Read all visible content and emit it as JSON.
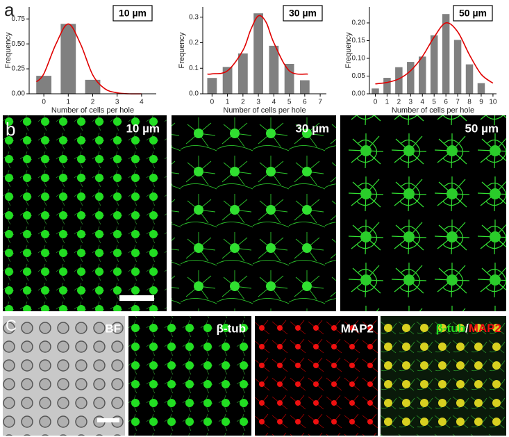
{
  "chart_data": [
    {
      "type": "bar",
      "annotation": "10 µm",
      "x_label": "Number of cells per hole",
      "y_label": "Frequency",
      "color": "#808080",
      "categories": [
        0,
        1,
        2
      ],
      "values": [
        0.18,
        0.7,
        0.14
      ],
      "xlim": [
        -0.6,
        4.6
      ],
      "xticks": [
        0,
        1,
        2,
        3,
        4
      ],
      "ylim": [
        0,
        0.87
      ],
      "yticks": [
        {
          "value": 0,
          "label": "0.00"
        },
        0.25,
        {
          "value": 0.5,
          "label": "0.50"
        },
        0.75
      ],
      "fit": {
        "color": "#e00000",
        "x": [
          -0.3,
          0,
          0.5,
          1,
          1.5,
          2,
          2.5,
          3,
          3.5,
          4
        ],
        "values": [
          0.12,
          0.2,
          0.5,
          0.7,
          0.5,
          0.19,
          0.05,
          0.01,
          0,
          0
        ]
      }
    },
    {
      "type": "bar",
      "annotation": "30 µm",
      "x_label": "Number of cells per hole",
      "y_label": "Frequency",
      "color": "#808080",
      "categories": [
        0,
        1,
        2,
        3,
        4,
        5,
        6
      ],
      "values": [
        0.062,
        0.105,
        0.158,
        0.315,
        0.188,
        0.117,
        0.053
      ],
      "xlim": [
        -0.6,
        7.4
      ],
      "xticks": [
        0,
        1,
        2,
        3,
        4,
        5,
        6,
        7
      ],
      "ylim": [
        0,
        0.34
      ],
      "yticks": [
        {
          "value": 0,
          "label": "0.0"
        },
        0.1,
        0.2,
        0.3
      ],
      "fit": {
        "color": "#e00000",
        "x": [
          -0.3,
          0,
          1,
          2,
          2.5,
          3,
          3.5,
          4,
          5,
          6.2
        ],
        "values": [
          0.077,
          0.078,
          0.09,
          0.17,
          0.25,
          0.305,
          0.28,
          0.2,
          0.09,
          0.077
        ]
      }
    },
    {
      "type": "bar",
      "annotation": "50 µm",
      "x_label": "Number of cells per hole",
      "y_label": "Frequency",
      "color": "#808080",
      "categories": [
        0,
        1,
        2,
        3,
        4,
        5,
        6,
        7,
        8,
        9
      ],
      "values": [
        0.015,
        0.045,
        0.075,
        0.09,
        0.105,
        0.165,
        0.225,
        0.152,
        0.083,
        0.03
      ],
      "xlim": [
        -0.5,
        10.3
      ],
      "xticks": [
        0,
        1,
        2,
        3,
        4,
        5,
        6,
        7,
        8,
        9,
        10
      ],
      "ylim": [
        0,
        0.245
      ],
      "yticks": [
        {
          "value": 0,
          "label": "0.00"
        },
        0.05,
        {
          "value": 0.1,
          "label": "0.10"
        },
        0.15,
        {
          "value": 0.2,
          "label": "0.20"
        }
      ],
      "fit": {
        "color": "#e00000",
        "x": [
          0,
          1,
          2,
          3,
          4,
          5,
          6,
          7,
          8,
          9,
          10
        ],
        "values": [
          0.028,
          0.032,
          0.042,
          0.065,
          0.105,
          0.16,
          0.2,
          0.175,
          0.11,
          0.055,
          0.03
        ]
      }
    }
  ],
  "panel_labels": [
    "a",
    "b",
    "C"
  ],
  "images_b": [
    "10 µm",
    "30 µm",
    "50 µm"
  ],
  "images_c": [
    "BF",
    "β-tub",
    "MAP2"
  ],
  "merged_label": [
    "β-tub",
    "/",
    "MAP2"
  ]
}
